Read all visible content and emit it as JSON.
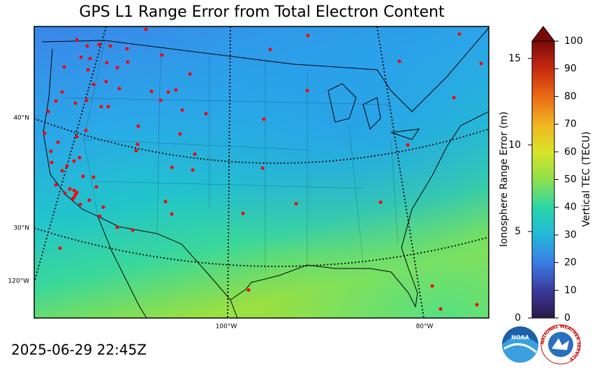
{
  "title": "GPS L1 Range Error from Total Electron Content",
  "timestamp": "2025-06-29 22:45Z",
  "map": {
    "lat_labels": [
      "40°N",
      "30°N"
    ],
    "lon_labels": [
      "120°W",
      "100°W",
      "80°W"
    ]
  },
  "colorbar": {
    "range_label": "Ionosphere Range Error (m)",
    "range_lim": [
      0,
      16
    ],
    "range_ticks": [
      0,
      5,
      10,
      15
    ],
    "tec_label": "Vertical TEC (TECU)",
    "tec_lim": [
      0,
      100
    ],
    "tec_ticks": [
      0,
      10,
      20,
      30,
      40,
      50,
      60,
      70,
      80,
      90,
      100
    ],
    "colors": [
      "#2c1a4a",
      "#3b3a9c",
      "#3a7ee6",
      "#22b8d8",
      "#2bd6a8",
      "#8fe04a",
      "#d8e428",
      "#f2b420",
      "#ea6a14",
      "#c82a10",
      "#7a0a08"
    ]
  },
  "logos": {
    "noaa": "NOAA",
    "nws": "NATIONAL WEATHER SERVICE"
  }
}
